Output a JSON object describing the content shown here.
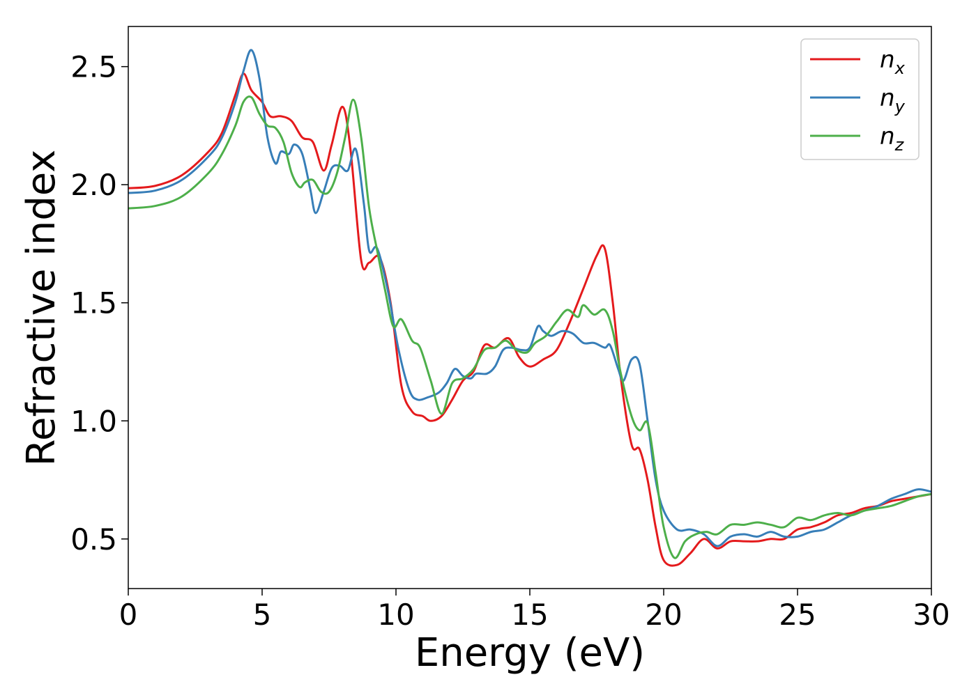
{
  "chart_data": {
    "type": "line",
    "title": "",
    "xlabel": "Energy (eV)",
    "ylabel": "Refractive index",
    "xlim": [
      0,
      30
    ],
    "ylim": [
      0.29,
      2.67
    ],
    "xticks": [
      0,
      5,
      10,
      15,
      20,
      25,
      30
    ],
    "xtick_labels": [
      "0",
      "5",
      "10",
      "15",
      "20",
      "25",
      "30"
    ],
    "yticks": [
      0.5,
      1.0,
      1.5,
      2.0,
      2.5
    ],
    "ytick_labels": [
      "0.5",
      "1.0",
      "1.5",
      "2.0",
      "2.5"
    ],
    "grid": false,
    "legend_position": "top-right",
    "series": [
      {
        "name": "n",
        "subscript": "x",
        "color": "#e41a1c",
        "x": [
          0,
          1,
          2,
          3,
          3.5,
          4,
          4.3,
          4.6,
          5.0,
          5.3,
          5.7,
          6.1,
          6.5,
          6.9,
          7.3,
          7.6,
          8.0,
          8.3,
          8.7,
          9.0,
          9.4,
          9.8,
          10.2,
          10.6,
          11.0,
          11.3,
          11.7,
          12.1,
          12.5,
          12.9,
          13.3,
          13.7,
          14.2,
          14.6,
          15.0,
          15.5,
          16.0,
          16.5,
          17.0,
          17.5,
          17.8,
          18.1,
          18.4,
          18.8,
          19.1,
          19.4,
          19.7,
          20.0,
          20.5,
          21.0,
          21.5,
          22.0,
          22.5,
          23.0,
          23.5,
          24.0,
          24.5,
          25.0,
          25.5,
          26.0,
          26.5,
          27.0,
          27.5,
          28.0,
          28.5,
          29.0,
          29.5,
          30.0
        ],
        "y": [
          1.985,
          1.995,
          2.04,
          2.14,
          2.22,
          2.38,
          2.47,
          2.4,
          2.35,
          2.29,
          2.29,
          2.27,
          2.2,
          2.18,
          2.06,
          2.17,
          2.33,
          2.15,
          1.68,
          1.67,
          1.69,
          1.5,
          1.15,
          1.04,
          1.02,
          1.0,
          1.02,
          1.09,
          1.17,
          1.21,
          1.32,
          1.31,
          1.35,
          1.27,
          1.23,
          1.26,
          1.3,
          1.42,
          1.56,
          1.7,
          1.73,
          1.5,
          1.18,
          0.9,
          0.88,
          0.75,
          0.55,
          0.41,
          0.39,
          0.44,
          0.5,
          0.46,
          0.49,
          0.49,
          0.49,
          0.5,
          0.5,
          0.54,
          0.55,
          0.57,
          0.6,
          0.61,
          0.63,
          0.64,
          0.66,
          0.67,
          0.68,
          0.69
        ]
      },
      {
        "name": "n",
        "subscript": "y",
        "color": "#377eb8",
        "x": [
          0,
          1,
          2,
          3,
          3.5,
          4,
          4.3,
          4.6,
          4.9,
          5.2,
          5.5,
          5.7,
          6.0,
          6.2,
          6.5,
          6.8,
          7.0,
          7.3,
          7.6,
          7.9,
          8.2,
          8.5,
          8.8,
          9.0,
          9.3,
          9.7,
          10.1,
          10.5,
          10.8,
          11.2,
          11.6,
          11.9,
          12.2,
          12.5,
          12.8,
          13.0,
          13.4,
          13.7,
          14.0,
          14.3,
          14.7,
          15.0,
          15.3,
          15.5,
          15.8,
          16.2,
          16.6,
          17.0,
          17.4,
          17.8,
          18.0,
          18.3,
          18.5,
          18.8,
          19.1,
          19.4,
          19.7,
          20.0,
          20.5,
          21.0,
          21.5,
          22.0,
          22.5,
          23.0,
          23.5,
          24.0,
          24.5,
          25.0,
          25.5,
          26.0,
          26.5,
          27.0,
          27.5,
          28.0,
          28.5,
          29.0,
          29.5,
          30.0
        ],
        "y": [
          1.965,
          1.975,
          2.02,
          2.12,
          2.2,
          2.35,
          2.48,
          2.57,
          2.45,
          2.2,
          2.09,
          2.14,
          2.13,
          2.17,
          2.13,
          1.98,
          1.88,
          1.97,
          2.07,
          2.08,
          2.06,
          2.15,
          1.92,
          1.72,
          1.73,
          1.55,
          1.3,
          1.13,
          1.09,
          1.1,
          1.12,
          1.16,
          1.22,
          1.19,
          1.18,
          1.2,
          1.2,
          1.23,
          1.3,
          1.31,
          1.3,
          1.31,
          1.4,
          1.38,
          1.36,
          1.38,
          1.37,
          1.33,
          1.33,
          1.31,
          1.32,
          1.22,
          1.17,
          1.26,
          1.24,
          1.0,
          0.75,
          0.62,
          0.54,
          0.54,
          0.52,
          0.47,
          0.51,
          0.52,
          0.51,
          0.53,
          0.51,
          0.51,
          0.53,
          0.54,
          0.57,
          0.6,
          0.62,
          0.64,
          0.67,
          0.69,
          0.71,
          0.7
        ]
      },
      {
        "name": "n",
        "subscript": "z",
        "color": "#4daf4a",
        "x": [
          0,
          1,
          2,
          3,
          3.5,
          4,
          4.3,
          4.6,
          4.9,
          5.2,
          5.5,
          5.8,
          6.1,
          6.4,
          6.6,
          6.9,
          7.2,
          7.5,
          7.8,
          8.1,
          8.4,
          8.7,
          9.0,
          9.3,
          9.6,
          9.9,
          10.2,
          10.6,
          10.9,
          11.3,
          11.7,
          12.1,
          12.5,
          12.9,
          13.3,
          13.7,
          14.1,
          14.5,
          14.9,
          15.2,
          15.6,
          16.0,
          16.4,
          16.8,
          17.0,
          17.4,
          17.8,
          18.1,
          18.4,
          18.8,
          19.1,
          19.4,
          19.7,
          20.0,
          20.4,
          20.8,
          21.2,
          21.6,
          22.0,
          22.5,
          23.0,
          23.5,
          24.0,
          24.5,
          25.0,
          25.5,
          26.0,
          26.5,
          27.0,
          27.5,
          28.0,
          28.5,
          29.0,
          29.5,
          30.0
        ],
        "y": [
          1.9,
          1.91,
          1.95,
          2.05,
          2.13,
          2.25,
          2.35,
          2.37,
          2.3,
          2.25,
          2.24,
          2.18,
          2.05,
          1.99,
          2.01,
          2.02,
          1.97,
          1.97,
          2.05,
          2.2,
          2.36,
          2.2,
          1.9,
          1.72,
          1.55,
          1.4,
          1.43,
          1.34,
          1.31,
          1.17,
          1.03,
          1.16,
          1.18,
          1.22,
          1.3,
          1.31,
          1.34,
          1.3,
          1.29,
          1.33,
          1.36,
          1.42,
          1.47,
          1.44,
          1.49,
          1.45,
          1.47,
          1.38,
          1.2,
          1.02,
          0.96,
          0.99,
          0.78,
          0.55,
          0.42,
          0.49,
          0.52,
          0.53,
          0.52,
          0.56,
          0.56,
          0.57,
          0.56,
          0.55,
          0.59,
          0.58,
          0.6,
          0.61,
          0.6,
          0.62,
          0.63,
          0.64,
          0.66,
          0.68,
          0.69
        ]
      }
    ]
  }
}
